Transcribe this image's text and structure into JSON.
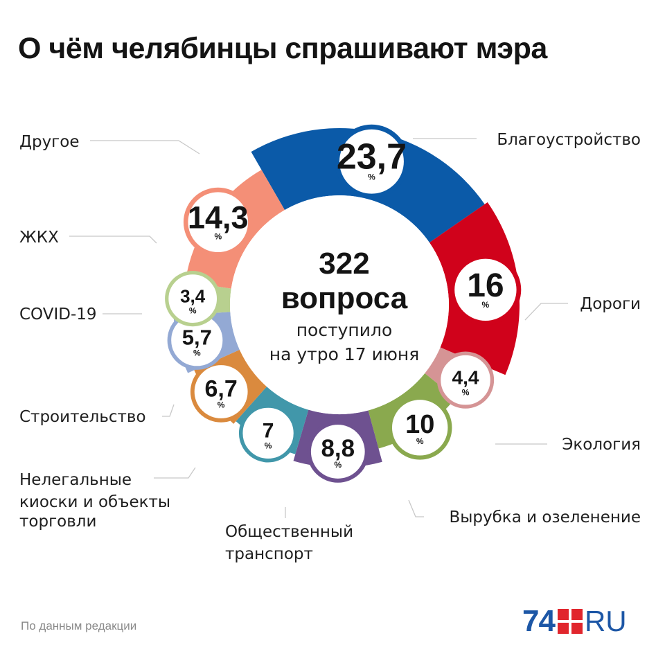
{
  "title": "О чём челябинцы спрашивают мэра",
  "center": {
    "number": "322",
    "word": "вопроса",
    "line1": "поступило",
    "line2": "на утро 17 июня"
  },
  "source": "По данным редакции",
  "logo": {
    "number": "74",
    "suffix": "RU",
    "number_color": "#1d57a6",
    "square_color": "#e1262d"
  },
  "chart_data": {
    "type": "pie",
    "title": "О чём челябинцы спрашивают мэра",
    "unit": "%",
    "total": 322,
    "slices": [
      {
        "label": "Благоустройство",
        "value": 23.7,
        "display": "23,7",
        "color": "#0b5aa8"
      },
      {
        "label": "Дороги",
        "value": 16,
        "display": "16",
        "color": "#d0021b"
      },
      {
        "label": "Экология",
        "value": 4.4,
        "display": "4,4",
        "color": "#d59495"
      },
      {
        "label": "Вырубка и озеленение",
        "value": 10,
        "display": "10",
        "color": "#8aa94e"
      },
      {
        "label": "Общественный транспорт",
        "value": 8.8,
        "display": "8,8",
        "color": "#6e5190"
      },
      {
        "label": "Нелегальные киоски и объекты торговли",
        "value": 7,
        "display": "7",
        "color": "#4197aa"
      },
      {
        "label": "Строительство",
        "value": 6.7,
        "display": "6,7",
        "color": "#da8a3e"
      },
      {
        "label": "COVID-19",
        "value": 5.7,
        "display": "5,7",
        "color": "#93a9d4"
      },
      {
        "label": "ЖКХ",
        "value": 3.4,
        "display": "3,4",
        "color": "#b8d08f"
      },
      {
        "label": "Другое",
        "value": 14.3,
        "display": "14,3",
        "color": "#f48f77"
      }
    ]
  }
}
